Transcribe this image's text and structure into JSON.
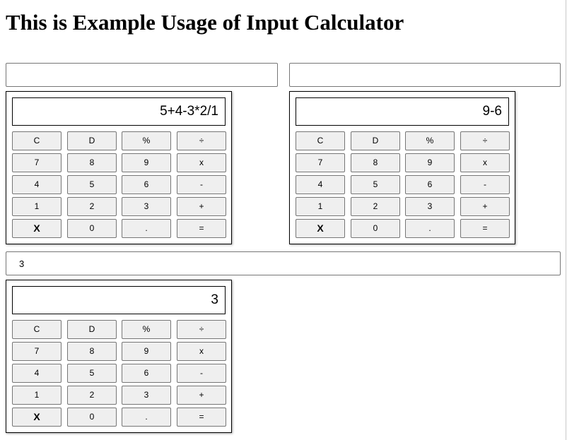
{
  "title": "This is Example Usage of Input Calculator",
  "inputs": [
    {
      "value": "",
      "placeholder": ""
    },
    {
      "value": "",
      "placeholder": ""
    },
    {
      "value": "3",
      "placeholder": ""
    }
  ],
  "calculators": [
    {
      "display": "5+4-3*2/1"
    },
    {
      "display": "9-6"
    },
    {
      "display": "3"
    }
  ],
  "buttons": [
    [
      "C",
      "D",
      "%",
      "÷"
    ],
    [
      "7",
      "8",
      "9",
      "x"
    ],
    [
      "4",
      "5",
      "6",
      "-"
    ],
    [
      "1",
      "2",
      "3",
      "+"
    ],
    [
      "X",
      "0",
      ".",
      "="
    ]
  ]
}
